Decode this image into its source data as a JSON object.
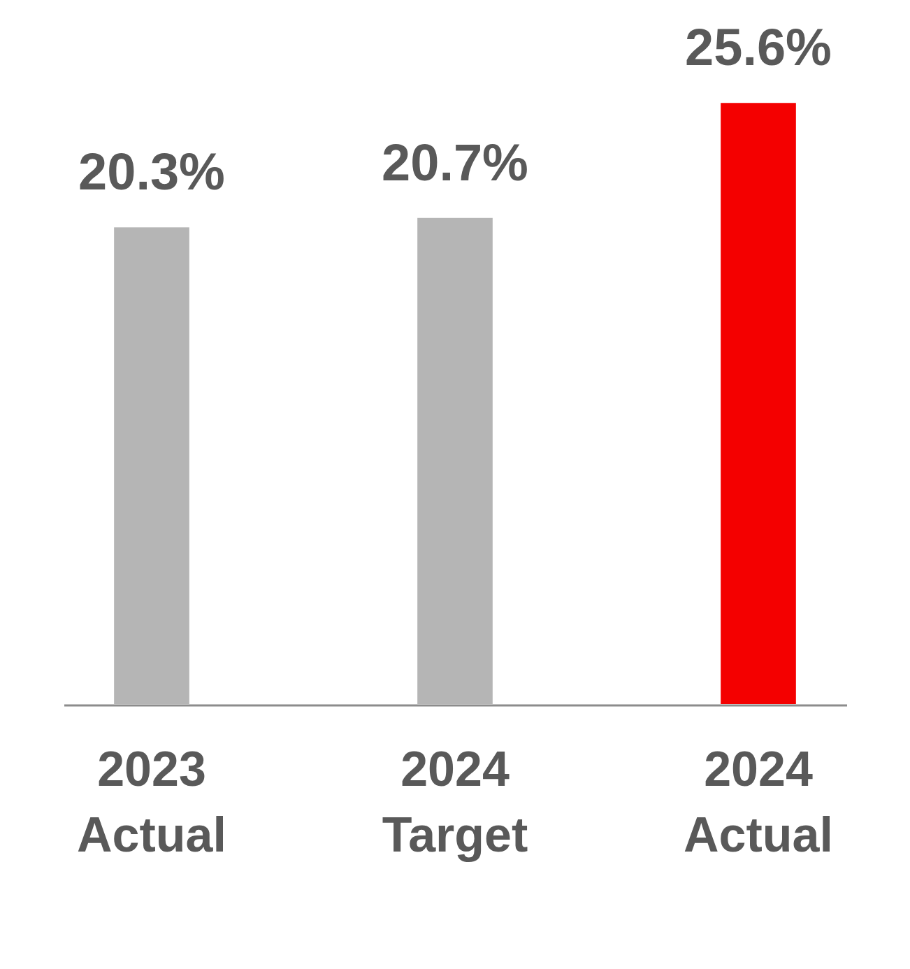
{
  "chart_data": {
    "type": "bar",
    "categories": [
      "2023 Actual",
      "2024 Target",
      "2024 Actual"
    ],
    "values": [
      20.3,
      20.7,
      25.6
    ],
    "colors": [
      "#b5b5b5",
      "#b5b5b5",
      "#f40000"
    ],
    "value_labels": [
      "20.3%",
      "20.7%",
      "25.6%"
    ],
    "grid": false,
    "legend": false
  }
}
